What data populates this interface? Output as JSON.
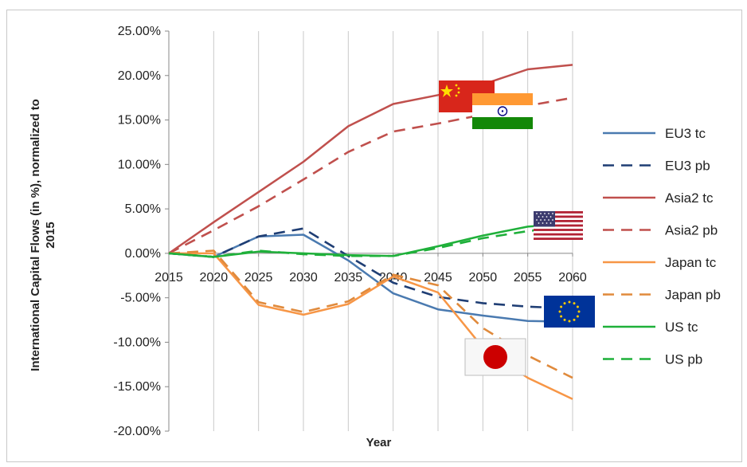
{
  "chart_data": {
    "type": "line",
    "xlabel": "Year",
    "ylabel": "International Capital Flows (in %), normalized to 2015",
    "x": [
      2015,
      2020,
      2025,
      2030,
      2035,
      2040,
      2045,
      2050,
      2055,
      2060
    ],
    "x_tick_labels": [
      "2015",
      "2020",
      "2025",
      "2030",
      "2035",
      "2040",
      "2045",
      "2050",
      "2055",
      "2060"
    ],
    "ylim": [
      -20,
      25
    ],
    "y_ticks": [
      25,
      20,
      15,
      10,
      5,
      0,
      -5,
      -10,
      -15,
      -20
    ],
    "y_tick_labels": [
      "25.00%",
      "20.00%",
      "15.00%",
      "10.00%",
      "5.00%",
      "0.00%",
      "-5.00%",
      "-10.00%",
      "-15.00%",
      "-20.00%"
    ],
    "grid": "vertical",
    "legend_position": "right",
    "series": [
      {
        "name": "EU3 tc",
        "color": "#4a7ab0",
        "dash": false,
        "flag": "eu-flag",
        "values": [
          0,
          -0.4,
          1.9,
          2.1,
          -0.8,
          -4.5,
          -6.3,
          -7.0,
          -7.6,
          -7.7
        ]
      },
      {
        "name": "EU3 pb",
        "color": "#1f3e74",
        "dash": true,
        "values": [
          0,
          -0.4,
          1.9,
          2.8,
          -0.3,
          -3.3,
          -4.9,
          -5.6,
          -6.0,
          -6.2
        ]
      },
      {
        "name": "Asia2 tc",
        "color": "#c0504d",
        "dash": false,
        "flag": "china-flag",
        "values": [
          0,
          3.5,
          6.9,
          10.3,
          14.3,
          16.8,
          17.8,
          19.0,
          20.7,
          21.2
        ]
      },
      {
        "name": "Asia2 pb",
        "color": "#c0504d",
        "dash": true,
        "flag": "india-flag",
        "values": [
          0,
          2.6,
          5.3,
          8.3,
          11.4,
          13.7,
          14.6,
          15.6,
          16.6,
          17.5
        ]
      },
      {
        "name": "Japan tc",
        "color": "#f79646",
        "dash": false,
        "flag": "japan-flag",
        "values": [
          0,
          0.0,
          -5.8,
          -6.9,
          -5.7,
          -2.6,
          -4.4,
          -10.6,
          -14.0,
          -16.4
        ]
      },
      {
        "name": "Japan pb",
        "color": "#e08a3c",
        "dash": true,
        "values": [
          0,
          0.3,
          -5.5,
          -6.6,
          -5.4,
          -2.4,
          -3.6,
          -8.4,
          -11.5,
          -14.0
        ]
      },
      {
        "name": "US tc",
        "color": "#1fb03a",
        "dash": false,
        "flag": "us-flag",
        "values": [
          0,
          -0.4,
          0.2,
          0.0,
          -0.2,
          -0.3,
          0.8,
          2.0,
          3.0,
          3.4
        ]
      },
      {
        "name": "US pb",
        "color": "#1fb03a",
        "dash": true,
        "values": [
          0,
          -0.4,
          0.3,
          -0.1,
          -0.3,
          -0.3,
          0.6,
          1.7,
          2.5,
          3.0
        ]
      }
    ]
  }
}
